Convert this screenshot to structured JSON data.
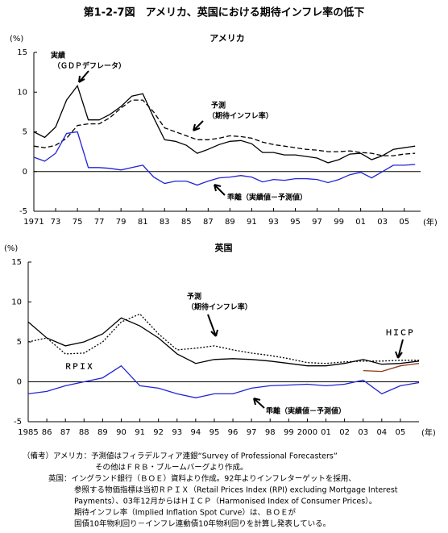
{
  "title": "第1-2-7図　アメリカ、英国における期待インフレ率の低下",
  "chart_data": [
    {
      "type": "line",
      "title": "アメリカ",
      "y_label": "(%)",
      "x_label": "(年)",
      "x": [
        1971,
        1972,
        1973,
        1974,
        1975,
        1976,
        1977,
        1978,
        1979,
        1980,
        1981,
        1982,
        1983,
        1984,
        1985,
        1986,
        1987,
        1988,
        1989,
        1990,
        1991,
        1992,
        1993,
        1994,
        1995,
        1996,
        1997,
        1998,
        1999,
        2000,
        2001,
        2002,
        2003,
        2004,
        2005,
        2006
      ],
      "series": [
        {
          "name": "実績",
          "color": "#000000",
          "dash": "solid",
          "values": [
            5.0,
            4.3,
            5.6,
            9.0,
            10.8,
            6.5,
            6.5,
            7.2,
            8.2,
            9.5,
            9.8,
            6.8,
            4.0,
            3.8,
            3.3,
            2.3,
            2.8,
            3.4,
            3.8,
            3.9,
            3.5,
            2.4,
            2.4,
            2.1,
            2.1,
            1.9,
            1.7,
            1.1,
            1.5,
            2.2,
            2.3,
            1.5,
            2.0,
            2.8,
            3.0,
            3.2
          ]
        },
        {
          "name": "予測",
          "color": "#000000",
          "dash": "dashed",
          "values": [
            3.2,
            3.0,
            3.3,
            4.2,
            5.8,
            6.0,
            6.0,
            6.8,
            8.0,
            9.0,
            9.0,
            7.5,
            5.5,
            5.0,
            4.5,
            4.0,
            4.0,
            4.2,
            4.5,
            4.4,
            4.2,
            3.7,
            3.4,
            3.2,
            3.0,
            2.8,
            2.7,
            2.5,
            2.5,
            2.6,
            2.4,
            2.3,
            2.0,
            2.0,
            2.2,
            2.3
          ]
        },
        {
          "name": "乖離（実績値－予測値）",
          "color": "#2323d6",
          "dash": "solid",
          "values": [
            1.8,
            1.3,
            2.3,
            4.8,
            5.0,
            0.5,
            0.5,
            0.4,
            0.2,
            0.5,
            0.8,
            -0.7,
            -1.5,
            -1.2,
            -1.2,
            -1.7,
            -1.2,
            -0.8,
            -0.7,
            -0.5,
            -0.7,
            -1.3,
            -1.0,
            -1.1,
            -0.9,
            -0.9,
            -1.0,
            -1.4,
            -1.0,
            -0.4,
            -0.1,
            -0.8,
            0.0,
            0.8,
            0.8,
            0.9
          ]
        }
      ],
      "annotations": [
        "（ＧＤＰデフレータ）",
        "（期待インフレ率）"
      ],
      "xlim": [
        1971,
        2006.5
      ],
      "ylim": [
        -5,
        15
      ],
      "yticks": [
        -5,
        0,
        5,
        10,
        15
      ],
      "zero_line": true,
      "xticks": [
        1971,
        {
          "value": 1973,
          "label": "73"
        },
        {
          "value": 1975,
          "label": "75"
        },
        {
          "value": 1977,
          "label": "77"
        },
        {
          "value": 1979,
          "label": "79"
        },
        {
          "value": 1981,
          "label": "81"
        },
        {
          "value": 1983,
          "label": "83"
        },
        {
          "value": 1985,
          "label": "85"
        },
        {
          "value": 1987,
          "label": "87"
        },
        {
          "value": 1989,
          "label": "89"
        },
        {
          "value": 1991,
          "label": "91"
        },
        {
          "value": 1993,
          "label": "93"
        },
        {
          "value": 1995,
          "label": "95"
        },
        {
          "value": 1997,
          "label": "97"
        },
        {
          "value": 1999,
          "label": "99"
        },
        {
          "value": 2001,
          "label": "01"
        },
        {
          "value": 2003,
          "label": "03"
        },
        {
          "value": 2005,
          "label": "05"
        }
      ]
    },
    {
      "type": "line",
      "title": "英国",
      "y_label": "(%)",
      "x_label": "(年)",
      "x": [
        1985,
        1986,
        1987,
        1988,
        1989,
        1990,
        1991,
        1992,
        1993,
        1994,
        1995,
        1996,
        1997,
        1998,
        1999,
        2000,
        2001,
        2002,
        2003,
        2004,
        2005,
        2006
      ],
      "series": [
        {
          "name": "ＲＰＩＸ",
          "color": "#000000",
          "dash": "solid",
          "values": [
            7.5,
            5.5,
            4.5,
            5.0,
            6.0,
            8.0,
            7.0,
            5.5,
            3.5,
            2.3,
            2.8,
            2.9,
            2.8,
            2.6,
            2.3,
            2.0,
            2.0,
            2.3,
            2.8,
            2.2,
            2.3,
            2.6
          ]
        },
        {
          "name": "予測",
          "color": "#000000",
          "dash": "dotted",
          "values": [
            5.0,
            5.5,
            3.5,
            3.6,
            5.0,
            7.5,
            8.5,
            6.0,
            4.0,
            4.2,
            4.5,
            4.0,
            3.6,
            3.3,
            2.9,
            2.4,
            2.3,
            2.5,
            2.6,
            2.6,
            2.7,
            2.7
          ]
        },
        {
          "name": "乖離（実績値－予測値）",
          "color": "#2323d6",
          "dash": "solid",
          "values": [
            -1.5,
            -1.2,
            -0.5,
            0.0,
            0.5,
            2.0,
            -0.5,
            -0.8,
            -1.5,
            -2.0,
            -1.5,
            -1.5,
            -0.8,
            -0.5,
            -0.4,
            -0.3,
            -0.5,
            -0.3,
            0.2,
            -1.5,
            -0.5,
            -0.1
          ]
        },
        {
          "name": "ＨＩＣＰ",
          "color": "#8b3a1a",
          "dash": "solid",
          "values": [
            null,
            null,
            null,
            null,
            null,
            null,
            null,
            null,
            null,
            null,
            null,
            null,
            null,
            null,
            null,
            null,
            null,
            null,
            1.4,
            1.3,
            2.0,
            2.3
          ]
        }
      ],
      "annotations": [
        "（期待インフレ率）"
      ],
      "xlim": [
        1985,
        2006
      ],
      "ylim": [
        -5,
        15
      ],
      "yticks": [
        -5,
        0,
        5,
        10,
        15
      ],
      "zero_line": true,
      "xticks": [
        1985,
        {
          "value": 1986,
          "label": "86"
        },
        {
          "value": 1987,
          "label": "87"
        },
        {
          "value": 1988,
          "label": "88"
        },
        {
          "value": 1989,
          "label": "89"
        },
        {
          "value": 1990,
          "label": "90"
        },
        {
          "value": 1991,
          "label": "91"
        },
        {
          "value": 1992,
          "label": "92"
        },
        {
          "value": 1993,
          "label": "93"
        },
        {
          "value": 1994,
          "label": "94"
        },
        {
          "value": 1995,
          "label": "95"
        },
        {
          "value": 1996,
          "label": "96"
        },
        {
          "value": 1997,
          "label": "97"
        },
        {
          "value": 1998,
          "label": "98"
        },
        {
          "value": 1999,
          "label": "99"
        },
        2000,
        {
          "value": 2001,
          "label": "01"
        },
        {
          "value": 2002,
          "label": "02"
        },
        {
          "value": 2003,
          "label": "03"
        },
        {
          "value": 2004,
          "label": "04"
        },
        {
          "value": 2005,
          "label": "05"
        }
      ]
    }
  ],
  "notes": [
    "（備考）アメリカ：予測値はフィラデルフィア連銀“Survey of Professional Forecasters”",
    "その他はＦＲＢ・ブルームバーグより作成。",
    "英国：イングランド銀行（ＢＯＥ）資料より作成。92年よりインフレターゲットを採用、",
    "参照する物価指標は当初ＲＰＩＸ（Retail Prices Index (RPI) excluding Mortgage Interest",
    "Payments）、03年12月からはＨＩＣＰ（Harmonised Index of Consumer Prices）。",
    "期待インフレ率（Implied Inflation Spot Curve）は、ＢＯＥが",
    "国債10年物利回り－インフレ連動債10年物利回りを計算し発表している。"
  ]
}
